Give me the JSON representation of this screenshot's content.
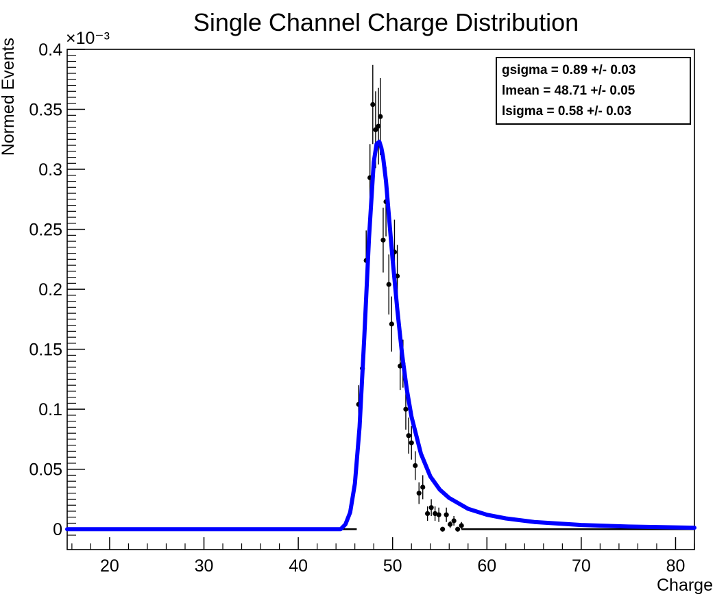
{
  "chart_data": {
    "type": "scatter",
    "title": "Single Channel Charge Distribution",
    "xlabel": "Charge",
    "ylabel": "Normed Events",
    "y_exponent_label": "×10⁻³",
    "xlim": [
      15.5,
      82
    ],
    "ylim": [
      -1.7e-05,
      0.0004
    ],
    "x_ticks": [
      20,
      30,
      40,
      50,
      60,
      70,
      80
    ],
    "x_tick_labels": [
      "20",
      "30",
      "40",
      "50",
      "60",
      "70",
      "80"
    ],
    "y_ticks": [
      0,
      5e-05,
      0.0001,
      0.00015,
      0.0002,
      0.00025,
      0.0003,
      0.00035,
      0.0004
    ],
    "y_tick_labels": [
      "0",
      "0.05",
      "0.1",
      "0.15",
      "0.2",
      "0.25",
      "0.3",
      "0.35",
      "0.4"
    ],
    "grid": false,
    "series": [
      {
        "kind": "points_with_errors",
        "color": "#000000",
        "x": [
          46.4,
          46.8,
          47.2,
          47.6,
          47.9,
          48.2,
          48.5,
          48.7,
          49.0,
          49.3,
          49.6,
          49.9,
          50.2,
          50.5,
          50.8,
          51.1,
          51.4,
          51.7,
          52.0,
          52.4,
          52.8,
          53.2,
          53.7,
          54.1,
          54.5,
          54.9,
          55.3,
          55.7,
          56.1,
          56.5,
          56.9,
          57.3
        ],
        "y": [
          0.000104,
          0.000134,
          0.000224,
          0.000293,
          0.000354,
          0.000333,
          0.000336,
          0.000344,
          0.000241,
          0.000273,
          0.000204,
          0.000171,
          0.000231,
          0.000211,
          0.000136,
          0.000138,
          0.0001,
          7.8e-05,
          7.2e-05,
          5.3e-05,
          3e-05,
          3.5e-05,
          1.3e-05,
          1.8e-05,
          1.3e-05,
          1.2e-05,
          0.0,
          1.2e-05,
          4e-06,
          7e-06,
          0.0,
          3e-06
        ],
        "yerr": [
          1.6e-05,
          2e-05,
          2.5e-05,
          2.8e-05,
          3.3e-05,
          3.2e-05,
          3.2e-05,
          3.2e-05,
          2.7e-05,
          2.9e-05,
          2.5e-05,
          2.3e-05,
          2.7e-05,
          2.6e-05,
          2e-05,
          2e-05,
          1.7e-05,
          1.5e-05,
          1.4e-05,
          1.2e-05,
          9e-06,
          1e-05,
          6e-06,
          7e-06,
          6e-06,
          6e-06,
          0.0,
          6e-06,
          3e-06,
          4e-06,
          0.0,
          3e-06
        ]
      },
      {
        "kind": "fit_curve",
        "color": "#0000ff",
        "x": [
          15.5,
          44.5,
          45.0,
          45.5,
          46.0,
          46.5,
          47.0,
          47.5,
          48.0,
          48.3,
          48.6,
          48.8,
          49.0,
          49.3,
          49.6,
          50.0,
          50.5,
          51.0,
          51.5,
          52.0,
          53.0,
          54.0,
          55.0,
          56.0,
          58.0,
          60.0,
          62.0,
          65.0,
          70.0,
          75.0,
          82.0
        ],
        "y": [
          0.0,
          0.0,
          4e-06,
          1.4e-05,
          3.8e-05,
          8.5e-05,
          0.00016,
          0.000243,
          0.000306,
          0.000321,
          0.000323,
          0.000318,
          0.00031,
          0.00029,
          0.000262,
          0.000225,
          0.000183,
          0.000146,
          0.000117,
          9.4e-05,
          6.3e-05,
          4.4e-05,
          3.3e-05,
          2.6e-05,
          1.7e-05,
          1.2e-05,
          9e-06,
          6e-06,
          3.5e-06,
          2.2e-06,
          1.2e-06
        ]
      }
    ]
  },
  "stats_box": {
    "line1": "gsigma = 0.89 +/- 0.03",
    "line2": "lmean = 48.71 +/- 0.05",
    "line3": "lsigma = 0.58 +/- 0.03"
  }
}
